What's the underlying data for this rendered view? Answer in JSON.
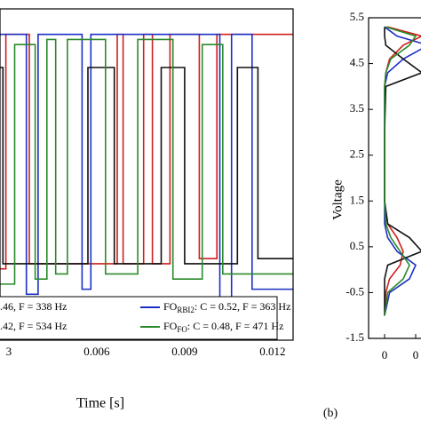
{
  "chart_data": [
    {
      "type": "line",
      "xlabel": "Time [s]",
      "xlim": [
        0.0027,
        0.0127
      ],
      "ylim": [
        -1,
        5.5
      ],
      "xticks": [
        {
          "value": 0.003,
          "label": "3"
        },
        0.006,
        0.009,
        0.012
      ],
      "series": [
        {
          "name": {
            "text": ".46, F = 338 Hz"
          },
          "color": "#d11f1f",
          "x": [
            0.0027,
            0.0029,
            0.0029,
            0.0037,
            0.0037,
            0.0067,
            0.0067,
            0.0069,
            0.0069,
            0.0076,
            0.0076,
            0.0079,
            0.0079,
            0.0085,
            0.0085,
            0.0095,
            0.0095,
            0.0101,
            0.0101,
            0.0127
          ],
          "values": [
            0.4,
            0.4,
            5,
            5,
            0.5,
            0.5,
            5,
            5,
            0.5,
            0.5,
            5,
            5,
            0.5,
            0.5,
            5,
            5,
            0.6,
            0.6,
            5,
            5
          ]
        },
        {
          "name": {
            "main": "FO",
            "sub": "RBI2",
            "text": ": C = 0.52, F = 363 Hz"
          },
          "color": "#1b2fc4",
          "x": [
            0.0027,
            0.0036,
            0.0036,
            0.004,
            0.004,
            0.0055,
            0.0055,
            0.0058,
            0.0058,
            0.0061,
            0.0061,
            0.0102,
            0.0102,
            0.0106,
            0.0106,
            0.0113,
            0.0113,
            0.0127
          ],
          "values": [
            5,
            5,
            -0.1,
            -0.1,
            5,
            5,
            0,
            0,
            5,
            5,
            5,
            5,
            -0.2,
            -0.2,
            5,
            5,
            0,
            0
          ]
        },
        {
          "name": {
            "text": ".42, F = 534 Hz"
          },
          "color": "#111111",
          "x": [
            0.0027,
            0.0028,
            0.0028,
            0.0057,
            0.0057,
            0.0066,
            0.0066,
            0.0082,
            0.0082,
            0.009,
            0.009,
            0.0108,
            0.0108,
            0.0115,
            0.0115,
            0.0127
          ],
          "values": [
            4.35,
            4.35,
            0.5,
            0.5,
            4.35,
            4.35,
            0.5,
            0.5,
            4.35,
            4.35,
            0.5,
            0.5,
            4.35,
            4.35,
            0.6,
            0.6
          ]
        },
        {
          "name": {
            "main": "FO",
            "sub": "FO",
            "text": ": C = 0.48, F = 471 Hz"
          },
          "color": "#2a8a2a",
          "x": [
            0.0027,
            0.0032,
            0.0032,
            0.0039,
            0.0039,
            0.0043,
            0.0043,
            0.0046,
            0.0046,
            0.005,
            0.005,
            0.0063,
            0.0063,
            0.0074,
            0.0074,
            0.0086,
            0.0086,
            0.0096,
            0.0096,
            0.0103,
            0.0103,
            0.0127
          ],
          "values": [
            0.1,
            0.1,
            4.8,
            4.8,
            0.2,
            0.2,
            4.9,
            4.9,
            0.3,
            0.3,
            4.9,
            4.9,
            0.3,
            0.3,
            4.9,
            4.9,
            0.2,
            0.2,
            4.8,
            4.8,
            0.3,
            0.3
          ]
        }
      ]
    },
    {
      "type": "line",
      "label": "(b)",
      "ylabel": "Voltage",
      "xlim": [
        -0.25,
        0.6
      ],
      "ylim": [
        -1.5,
        5.5
      ],
      "xticks": [
        0,
        {
          "value": 0.5,
          "label": "0"
        }
      ],
      "yticks": [
        5.5,
        4.5,
        3.5,
        2.5,
        1.5,
        0.5,
        -0.5,
        -1.5
      ],
      "voltages": [
        -1.0,
        -0.5,
        -0.2,
        0.1,
        0.4,
        0.7,
        1.0,
        1.5,
        3.0,
        4.0,
        4.3,
        4.6,
        4.9,
        5.1,
        5.3
      ],
      "series": [
        {
          "color": "#d11f1f",
          "values": [
            0,
            0.02,
            0.08,
            0.25,
            0.3,
            0.2,
            0.05,
            0,
            0,
            0,
            0.02,
            0.08,
            0.3,
            0.6,
            0.05
          ]
        },
        {
          "color": "#1b2fc4",
          "values": [
            0,
            0.08,
            0.4,
            0.5,
            0.2,
            0.05,
            0,
            0,
            0,
            0,
            0.05,
            0.3,
            0.7,
            0.2,
            0
          ]
        },
        {
          "color": "#111111",
          "values": [
            0,
            0,
            0,
            0.05,
            0.6,
            0.4,
            0.05,
            0,
            0,
            0.02,
            0.6,
            0.3,
            0.02,
            0,
            0
          ]
        },
        {
          "color": "#2a8a2a",
          "values": [
            0,
            0.05,
            0.3,
            0.4,
            0.25,
            0.1,
            0.02,
            0,
            0,
            0,
            0.02,
            0.1,
            0.4,
            0.5,
            0.02
          ]
        }
      ]
    }
  ]
}
